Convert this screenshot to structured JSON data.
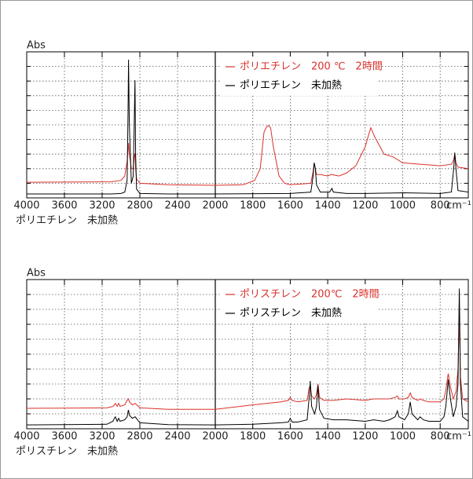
{
  "chart_data": [
    {
      "type": "line",
      "ylabel": "Abs",
      "xlabel": "cm⁻¹",
      "caption": "ポリエチレン　未加熱",
      "xlim": [
        4000,
        650
      ],
      "xbreak": 2000,
      "xticks": [
        4000,
        3600,
        3200,
        2800,
        2400,
        2000,
        1800,
        1600,
        1400,
        1200,
        1000,
        800
      ],
      "ylim": [
        0,
        1
      ],
      "yticks": [
        0,
        0.1,
        0.2,
        0.3,
        0.4,
        0.5,
        0.6,
        0.7,
        0.8,
        0.9,
        1
      ],
      "grid": true,
      "series": [
        {
          "name": "ポリエチレン　200 ℃　2時間",
          "color": "#d9312b",
          "x": [
            4000,
            3100,
            3000,
            2960,
            2935,
            2925,
            2920,
            2912,
            2890,
            2870,
            2860,
            2852,
            2845,
            2835,
            2800,
            2500,
            2000,
            1850,
            1790,
            1760,
            1740,
            1725,
            1715,
            1705,
            1690,
            1660,
            1630,
            1600,
            1490,
            1478,
            1472,
            1466,
            1460,
            1440,
            1400,
            1380,
            1340,
            1300,
            1250,
            1200,
            1180,
            1170,
            1150,
            1100,
            1050,
            1000,
            900,
            800,
            740,
            728,
            722,
            716,
            705,
            650
          ],
          "values": [
            0.107,
            0.11,
            0.12,
            0.15,
            0.25,
            0.33,
            0.376,
            0.3,
            0.2,
            0.2,
            0.28,
            0.306,
            0.2,
            0.13,
            0.1,
            0.09,
            0.086,
            0.09,
            0.12,
            0.2,
            0.45,
            0.49,
            0.495,
            0.48,
            0.35,
            0.15,
            0.1,
            0.09,
            0.1,
            0.18,
            0.24,
            0.2,
            0.16,
            0.16,
            0.15,
            0.16,
            0.15,
            0.17,
            0.22,
            0.35,
            0.44,
            0.48,
            0.42,
            0.3,
            0.28,
            0.24,
            0.23,
            0.22,
            0.23,
            0.26,
            0.3,
            0.24,
            0.21,
            0.2
          ]
        },
        {
          "name": "ポリエチレン　未加熱",
          "color": "#000000",
          "x": [
            4000,
            3100,
            3000,
            2960,
            2935,
            2925,
            2920,
            2912,
            2890,
            2870,
            2860,
            2852,
            2845,
            2835,
            2800,
            2500,
            2000,
            1600,
            1490,
            1478,
            1472,
            1466,
            1460,
            1440,
            1390,
            1378,
            1370,
            1300,
            1200,
            1000,
            800,
            740,
            728,
            722,
            716,
            705,
            650
          ],
          "values": [
            0.027,
            0.027,
            0.03,
            0.04,
            0.12,
            0.6,
            0.946,
            0.5,
            0.1,
            0.15,
            0.5,
            0.806,
            0.3,
            0.06,
            0.03,
            0.027,
            0.027,
            0.03,
            0.04,
            0.15,
            0.24,
            0.2,
            0.09,
            0.04,
            0.04,
            0.065,
            0.04,
            0.03,
            0.03,
            0.035,
            0.03,
            0.04,
            0.2,
            0.31,
            0.2,
            0.05,
            0.04
          ]
        }
      ]
    },
    {
      "type": "line",
      "ylabel": "Abs",
      "xlabel": "cm⁻¹",
      "caption": "ポリスチレン　未加熱",
      "xlim": [
        4000,
        650
      ],
      "xbreak": 2000,
      "xticks": [
        4000,
        3600,
        3200,
        2800,
        2400,
        2000,
        1800,
        1600,
        1400,
        1200,
        1000,
        800
      ],
      "ylim": [
        0,
        1
      ],
      "yticks": [
        0,
        0.1,
        0.2,
        0.3,
        0.4,
        0.5,
        0.6,
        0.7,
        0.8,
        0.9,
        1
      ],
      "grid": true,
      "series": [
        {
          "name": "ポリスチレン　200℃　2時間",
          "color": "#d9312b",
          "x": [
            4000,
            3150,
            3085,
            3070,
            3060,
            3040,
            3025,
            3010,
            2960,
            2935,
            2922,
            2910,
            2880,
            2850,
            2800,
            2500,
            2000,
            1800,
            1650,
            1610,
            1600,
            1590,
            1560,
            1510,
            1500,
            1493,
            1486,
            1470,
            1460,
            1452,
            1444,
            1420,
            1370,
            1300,
            1200,
            1155,
            1100,
            1070,
            1040,
            1028,
            1020,
            990,
            970,
            960,
            950,
            920,
            907,
            890,
            860,
            800,
            780,
            770,
            757,
            745,
            730,
            715,
            705,
            698,
            692,
            680,
            650
          ],
          "values": [
            0.137,
            0.14,
            0.15,
            0.16,
            0.17,
            0.15,
            0.17,
            0.15,
            0.16,
            0.19,
            0.2,
            0.18,
            0.16,
            0.17,
            0.14,
            0.13,
            0.13,
            0.16,
            0.18,
            0.19,
            0.21,
            0.19,
            0.18,
            0.19,
            0.27,
            0.29,
            0.22,
            0.2,
            0.23,
            0.3,
            0.21,
            0.19,
            0.19,
            0.2,
            0.19,
            0.2,
            0.2,
            0.2,
            0.21,
            0.22,
            0.2,
            0.2,
            0.21,
            0.24,
            0.21,
            0.19,
            0.2,
            0.19,
            0.18,
            0.18,
            0.2,
            0.26,
            0.37,
            0.28,
            0.2,
            0.25,
            0.4,
            0.77,
            0.35,
            0.2,
            0.18
          ]
        },
        {
          "name": "ポリスチレン　未加熱",
          "color": "#000000",
          "x": [
            4000,
            3150,
            3085,
            3070,
            3060,
            3040,
            3025,
            3010,
            2960,
            2935,
            2922,
            2910,
            2880,
            2850,
            2800,
            2500,
            2000,
            1800,
            1650,
            1610,
            1600,
            1590,
            1560,
            1510,
            1500,
            1493,
            1486,
            1470,
            1460,
            1452,
            1444,
            1420,
            1370,
            1300,
            1200,
            1155,
            1100,
            1070,
            1040,
            1028,
            1020,
            990,
            970,
            960,
            950,
            920,
            907,
            890,
            860,
            800,
            780,
            770,
            757,
            745,
            730,
            715,
            705,
            698,
            692,
            680,
            650
          ],
          "values": [
            0.026,
            0.03,
            0.05,
            0.07,
            0.08,
            0.05,
            0.07,
            0.05,
            0.06,
            0.08,
            0.126,
            0.09,
            0.07,
            0.08,
            0.04,
            0.028,
            0.026,
            0.03,
            0.04,
            0.045,
            0.07,
            0.045,
            0.045,
            0.06,
            0.2,
            0.32,
            0.15,
            0.1,
            0.15,
            0.29,
            0.13,
            0.07,
            0.06,
            0.06,
            0.05,
            0.06,
            0.05,
            0.06,
            0.08,
            0.12,
            0.08,
            0.06,
            0.1,
            0.18,
            0.1,
            0.06,
            0.08,
            0.06,
            0.05,
            0.05,
            0.08,
            0.15,
            0.33,
            0.2,
            0.08,
            0.15,
            0.3,
            0.94,
            0.3,
            0.08,
            0.05
          ]
        }
      ]
    }
  ]
}
